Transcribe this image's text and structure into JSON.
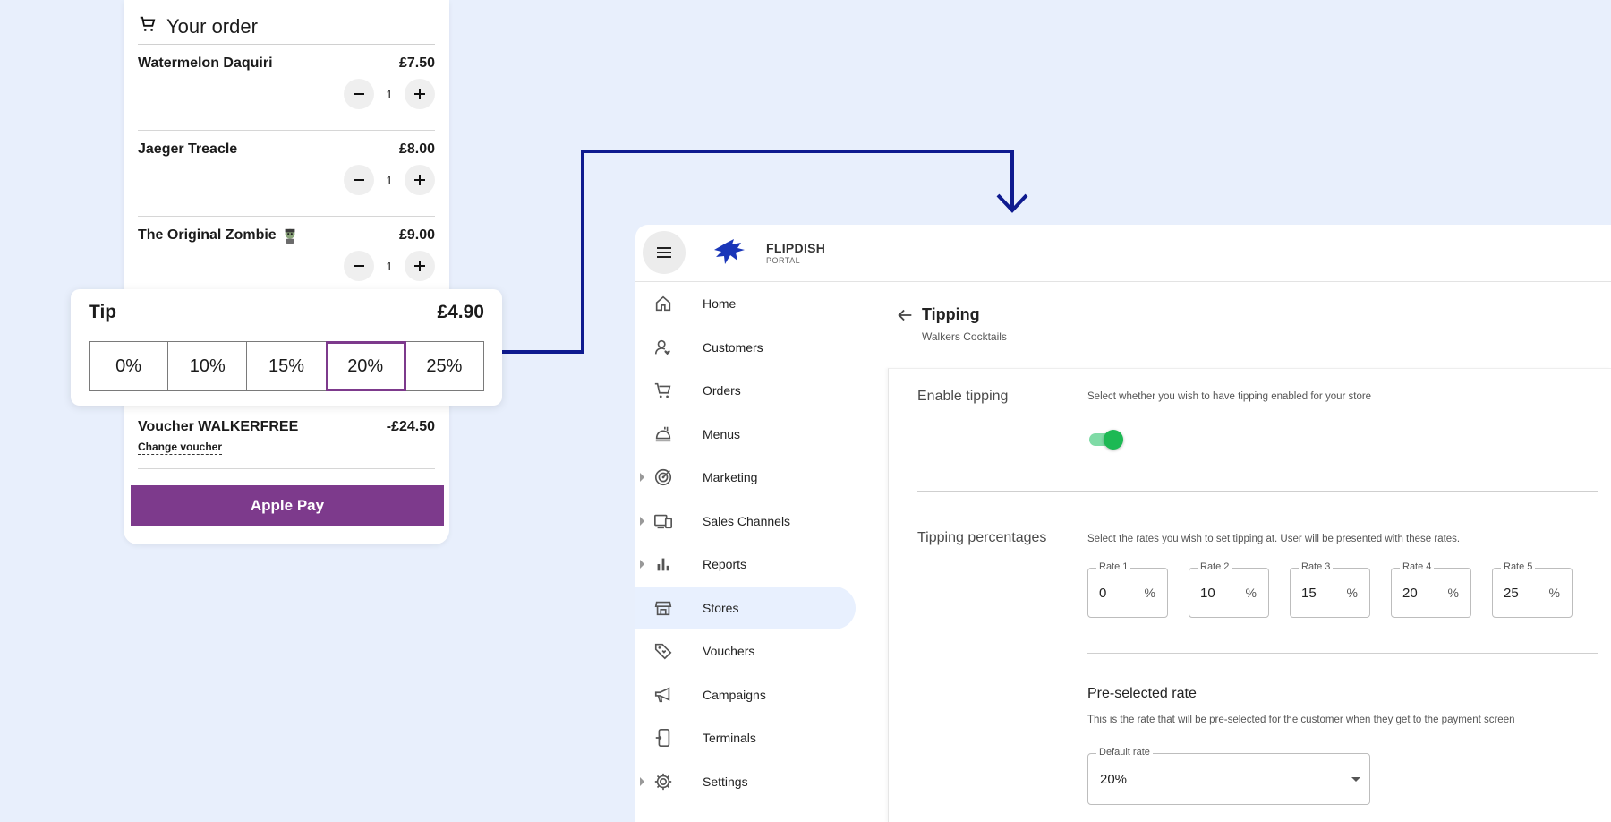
{
  "order": {
    "title": "Your order",
    "items": [
      {
        "name": "Watermelon Daquiri",
        "price": "£7.50",
        "qty": "1",
        "emoji": ""
      },
      {
        "name": "Jaeger Treacle",
        "price": "£8.00",
        "qty": "1",
        "emoji": ""
      },
      {
        "name": "The Original Zombie",
        "price": "£9.00",
        "qty": "1",
        "emoji": "zombie"
      }
    ],
    "voucher_label": "Voucher WALKERFREE",
    "voucher_amount": "-£24.50",
    "change_voucher": "Change voucher",
    "pay_button": "Apple Pay"
  },
  "tip": {
    "title": "Tip",
    "amount": "£4.90",
    "options": [
      "0%",
      "10%",
      "15%",
      "20%",
      "25%"
    ],
    "selected": "20%",
    "selected_color": "#7d3a8c"
  },
  "portal": {
    "brand_name": "FLIPDISH",
    "brand_sub": "PORTAL",
    "nav": [
      {
        "label": "Home",
        "icon": "home-icon",
        "expandable": false,
        "active": false
      },
      {
        "label": "Customers",
        "icon": "customers-icon",
        "expandable": false,
        "active": false
      },
      {
        "label": "Orders",
        "icon": "cart-icon",
        "expandable": false,
        "active": false
      },
      {
        "label": "Menus",
        "icon": "menus-icon",
        "expandable": false,
        "active": false
      },
      {
        "label": "Marketing",
        "icon": "target-icon",
        "expandable": true,
        "active": false
      },
      {
        "label": "Sales Channels",
        "icon": "devices-icon",
        "expandable": true,
        "active": false
      },
      {
        "label": "Reports",
        "icon": "bar-chart-icon",
        "expandable": true,
        "active": false
      },
      {
        "label": "Stores",
        "icon": "store-icon",
        "expandable": false,
        "active": true
      },
      {
        "label": "Vouchers",
        "icon": "tag-icon",
        "expandable": false,
        "active": false
      },
      {
        "label": "Campaigns",
        "icon": "megaphone-icon",
        "expandable": false,
        "active": false
      },
      {
        "label": "Terminals",
        "icon": "terminal-icon",
        "expandable": false,
        "active": false
      },
      {
        "label": "Settings",
        "icon": "gear-icon",
        "expandable": true,
        "active": false
      }
    ],
    "page_title": "Tipping",
    "page_subtitle": "Walkers Cocktails",
    "enable_label": "Enable tipping",
    "enable_desc": "Select whether you wish to have tipping enabled for your store",
    "tipping_enabled": true,
    "percent_label": "Tipping percentages",
    "percent_desc": "Select the rates you wish to set tipping at. User will be presented with these rates.",
    "rates": [
      {
        "label": "Rate 1",
        "value": "0"
      },
      {
        "label": "Rate 2",
        "value": "10"
      },
      {
        "label": "Rate 3",
        "value": "15"
      },
      {
        "label": "Rate 4",
        "value": "20"
      },
      {
        "label": "Rate 5",
        "value": "25"
      }
    ],
    "percent_sign": "%",
    "preselected_title": "Pre-selected rate",
    "preselected_desc": "This is the rate that will be pre-selected for the customer when they get to the payment screen",
    "default_rate_label": "Default rate",
    "default_rate_value": "20%",
    "toggle_color": "#1db954",
    "active_nav_bg": "#e8f0fe"
  },
  "colors": {
    "background": "#e8effc",
    "connector": "#0e1a8f",
    "brand_purple": "#7d3a8c"
  }
}
